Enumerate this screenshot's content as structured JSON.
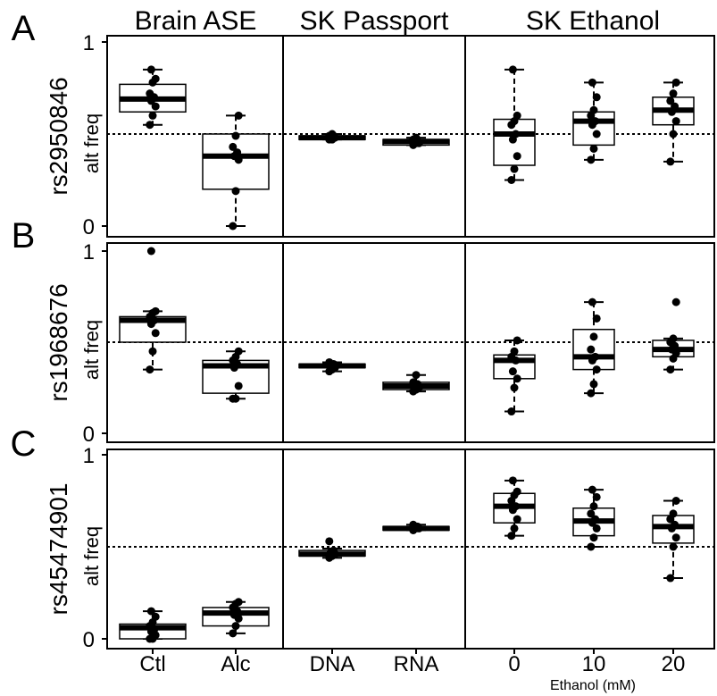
{
  "figure": {
    "panel_letters": [
      "A",
      "B",
      "C"
    ],
    "column_titles": [
      "Brain ASE",
      "SK Passport",
      "SK Ethanol"
    ],
    "ylabel": "alt freq",
    "xlabel_sub": "Ethanol (mM)"
  },
  "chart_data": {
    "type": "boxplot",
    "ylim": [
      0,
      1
    ],
    "yticks": [
      0,
      1
    ],
    "reference_line": 0.5,
    "reference_style": "dotted",
    "grid": false,
    "columns": [
      {
        "title": "Brain ASE",
        "categories": [
          "Ctl",
          "Alc"
        ]
      },
      {
        "title": "SK Passport",
        "categories": [
          "DNA",
          "RNA"
        ]
      },
      {
        "title": "SK Ethanol",
        "categories": [
          "0",
          "10",
          "20"
        ]
      }
    ],
    "rows": [
      {
        "letter": "A",
        "snp": "rs2950846",
        "groups": [
          {
            "column": 0,
            "category": "Ctl",
            "whisker_low": 0.55,
            "q1": 0.62,
            "median": 0.69,
            "q3": 0.77,
            "whisker_high": 0.85,
            "points": [
              0.55,
              0.6,
              0.65,
              0.68,
              0.7,
              0.72,
              0.78,
              0.8,
              0.85
            ]
          },
          {
            "column": 0,
            "category": "Alc",
            "whisker_low": 0.0,
            "q1": 0.2,
            "median": 0.38,
            "q3": 0.5,
            "whisker_high": 0.6,
            "points": [
              0.0,
              0.19,
              0.36,
              0.38,
              0.4,
              0.43,
              0.49,
              0.6
            ]
          },
          {
            "column": 1,
            "category": "DNA",
            "whisker_low": 0.47,
            "q1": 0.47,
            "median": 0.48,
            "q3": 0.49,
            "whisker_high": 0.5,
            "points": [
              0.47,
              0.47,
              0.48,
              0.48,
              0.49,
              0.49,
              0.5
            ]
          },
          {
            "column": 1,
            "category": "RNA",
            "whisker_low": 0.44,
            "q1": 0.44,
            "median": 0.46,
            "q3": 0.47,
            "whisker_high": 0.48,
            "points": [
              0.44,
              0.45,
              0.45,
              0.46,
              0.46,
              0.47,
              0.48
            ]
          },
          {
            "column": 2,
            "category": "0",
            "whisker_low": 0.25,
            "q1": 0.33,
            "median": 0.5,
            "q3": 0.58,
            "whisker_high": 0.85,
            "points": [
              0.25,
              0.31,
              0.38,
              0.47,
              0.5,
              0.55,
              0.57,
              0.6,
              0.85
            ]
          },
          {
            "column": 2,
            "category": "10",
            "whisker_low": 0.36,
            "q1": 0.44,
            "median": 0.57,
            "q3": 0.62,
            "whisker_high": 0.78,
            "points": [
              0.36,
              0.42,
              0.5,
              0.55,
              0.57,
              0.6,
              0.63,
              0.7,
              0.78
            ]
          },
          {
            "column": 2,
            "category": "20",
            "whisker_low": 0.35,
            "q1": 0.55,
            "median": 0.63,
            "q3": 0.7,
            "whisker_high": 0.78,
            "points": [
              0.35,
              0.5,
              0.57,
              0.62,
              0.65,
              0.68,
              0.72,
              0.78
            ]
          }
        ]
      },
      {
        "letter": "B",
        "snp": "rs1968676",
        "groups": [
          {
            "column": 0,
            "category": "Ctl",
            "whisker_low": 0.35,
            "q1": 0.5,
            "median": 0.62,
            "q3": 0.64,
            "whisker_high": 0.67,
            "points": [
              0.35,
              0.45,
              0.55,
              0.6,
              0.62,
              0.64,
              0.66,
              0.67,
              1.0
            ]
          },
          {
            "column": 0,
            "category": "Alc",
            "whisker_low": 0.19,
            "q1": 0.22,
            "median": 0.37,
            "q3": 0.4,
            "whisker_high": 0.45,
            "points": [
              0.19,
              0.19,
              0.26,
              0.36,
              0.38,
              0.4,
              0.42,
              0.45
            ]
          },
          {
            "column": 1,
            "category": "DNA",
            "whisker_low": 0.34,
            "q1": 0.36,
            "median": 0.37,
            "q3": 0.38,
            "whisker_high": 0.39,
            "points": [
              0.34,
              0.35,
              0.36,
              0.37,
              0.38,
              0.39
            ]
          },
          {
            "column": 1,
            "category": "RNA",
            "whisker_low": 0.23,
            "q1": 0.24,
            "median": 0.26,
            "q3": 0.28,
            "whisker_high": 0.32,
            "points": [
              0.23,
              0.24,
              0.25,
              0.26,
              0.27,
              0.28,
              0.32
            ]
          },
          {
            "column": 2,
            "category": "0",
            "whisker_low": 0.12,
            "q1": 0.3,
            "median": 0.4,
            "q3": 0.43,
            "whisker_high": 0.51,
            "points": [
              0.12,
              0.25,
              0.3,
              0.34,
              0.4,
              0.42,
              0.45,
              0.51
            ]
          },
          {
            "column": 2,
            "category": "10",
            "whisker_low": 0.22,
            "q1": 0.35,
            "median": 0.42,
            "q3": 0.57,
            "whisker_high": 0.72,
            "points": [
              0.22,
              0.27,
              0.35,
              0.4,
              0.42,
              0.46,
              0.53,
              0.63,
              0.72
            ]
          },
          {
            "column": 2,
            "category": "20",
            "whisker_low": 0.35,
            "q1": 0.42,
            "median": 0.46,
            "q3": 0.51,
            "whisker_high": 0.52,
            "points": [
              0.35,
              0.41,
              0.44,
              0.46,
              0.48,
              0.5,
              0.52,
              0.72
            ]
          }
        ]
      },
      {
        "letter": "C",
        "snp": "rs45474901",
        "groups": [
          {
            "column": 0,
            "category": "Ctl",
            "whisker_low": 0.0,
            "q1": 0.0,
            "median": 0.06,
            "q3": 0.08,
            "whisker_high": 0.15,
            "points": [
              0.0,
              0.0,
              0.02,
              0.04,
              0.05,
              0.07,
              0.09,
              0.12,
              0.15
            ]
          },
          {
            "column": 0,
            "category": "Alc",
            "whisker_low": 0.03,
            "q1": 0.07,
            "median": 0.14,
            "q3": 0.17,
            "whisker_high": 0.2,
            "points": [
              0.03,
              0.07,
              0.11,
              0.13,
              0.15,
              0.17,
              0.19,
              0.2
            ]
          },
          {
            "column": 1,
            "category": "DNA",
            "whisker_low": 0.44,
            "q1": 0.45,
            "median": 0.46,
            "q3": 0.48,
            "whisker_high": 0.49,
            "points": [
              0.44,
              0.45,
              0.46,
              0.47,
              0.48,
              0.53
            ]
          },
          {
            "column": 1,
            "category": "RNA",
            "whisker_low": 0.59,
            "q1": 0.59,
            "median": 0.6,
            "q3": 0.61,
            "whisker_high": 0.62,
            "points": [
              0.59,
              0.6,
              0.6,
              0.61,
              0.61,
              0.62
            ]
          },
          {
            "column": 2,
            "category": "0",
            "whisker_low": 0.56,
            "q1": 0.63,
            "median": 0.72,
            "q3": 0.79,
            "whisker_high": 0.86,
            "points": [
              0.56,
              0.6,
              0.65,
              0.7,
              0.72,
              0.75,
              0.78,
              0.8,
              0.86
            ]
          },
          {
            "column": 2,
            "category": "10",
            "whisker_low": 0.5,
            "q1": 0.56,
            "median": 0.64,
            "q3": 0.71,
            "whisker_high": 0.81,
            "points": [
              0.5,
              0.55,
              0.6,
              0.63,
              0.65,
              0.68,
              0.72,
              0.77,
              0.81
            ]
          },
          {
            "column": 2,
            "category": "20",
            "whisker_low": 0.33,
            "q1": 0.52,
            "median": 0.61,
            "q3": 0.67,
            "whisker_high": 0.75,
            "points": [
              0.33,
              0.5,
              0.55,
              0.6,
              0.62,
              0.65,
              0.68,
              0.75
            ]
          }
        ]
      }
    ]
  }
}
